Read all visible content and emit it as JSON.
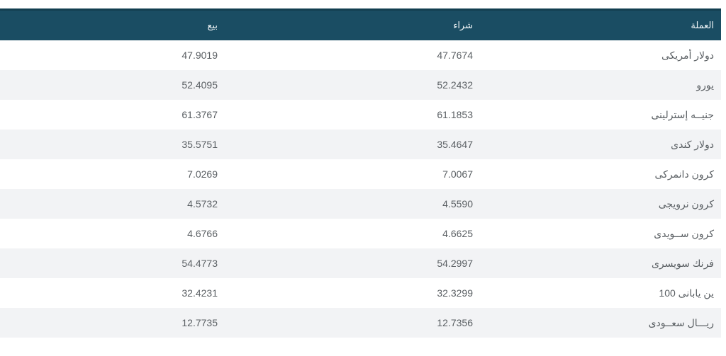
{
  "colors": {
    "header_bg": "#1a4d63",
    "header_top_border": "#123e50",
    "header_text": "#f1f6f8",
    "row_bg": "#ffffff",
    "row_alt_bg": "#f2f3f5",
    "cell_text": "#5a5f63"
  },
  "table": {
    "columns": {
      "currency": "العملة",
      "buy": "شراء",
      "sell": "بيع"
    },
    "rows": [
      {
        "currency": "دولار أمريكى",
        "buy": "47.7674",
        "sell": "47.9019"
      },
      {
        "currency": "يورو",
        "buy": "52.2432",
        "sell": "52.4095"
      },
      {
        "currency": "جنيــه إسترلينى",
        "buy": "61.1853",
        "sell": "61.3767"
      },
      {
        "currency": "دولار كندى",
        "buy": "35.4647",
        "sell": "35.5751"
      },
      {
        "currency": "كرون دانمركى",
        "buy": "7.0067",
        "sell": "7.0269"
      },
      {
        "currency": "كرون نرويجى",
        "buy": "4.5590",
        "sell": "4.5732"
      },
      {
        "currency": "كرون ســويدى",
        "buy": "4.6625",
        "sell": "4.6766"
      },
      {
        "currency": "فرنك سويسرى",
        "buy": "54.2997",
        "sell": "54.4773"
      },
      {
        "currency": "100 ين يابانى",
        "buy": "32.3299",
        "sell": "32.4231"
      },
      {
        "currency": "ريـــال سعــودى",
        "buy": "12.7356",
        "sell": "12.7735"
      }
    ]
  }
}
